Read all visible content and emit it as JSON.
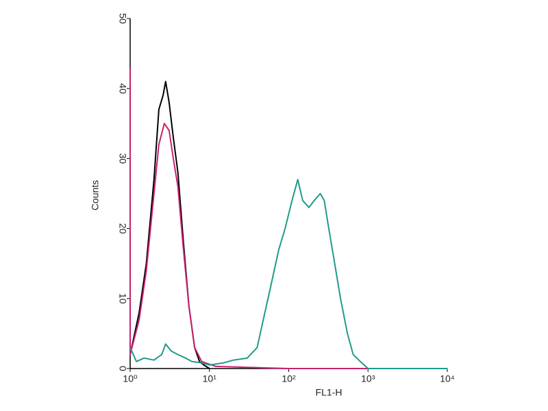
{
  "chart_data": {
    "type": "line",
    "xscale": "log",
    "xlabel": "FL1-H",
    "ylabel": "Counts",
    "xlim": [
      1,
      10000
    ],
    "xticks": [
      {
        "value": 1,
        "label": "10⁰"
      },
      {
        "value": 10,
        "label": "10¹"
      },
      {
        "value": 100,
        "label": "10²"
      },
      {
        "value": 1000,
        "label": "10³"
      },
      {
        "value": 10000,
        "label": "10⁴"
      }
    ],
    "ylim": [
      0,
      50
    ],
    "yticks": [
      0,
      10,
      20,
      30,
      40,
      50
    ],
    "series": [
      {
        "color": "#000000",
        "x": [
          1,
          1.3,
          1.6,
          2,
          2.3,
          2.6,
          2.8,
          3.1,
          3.5,
          4,
          4.7,
          5.5,
          6.5,
          7.5,
          8.5,
          10
        ],
        "values": [
          2,
          8,
          15,
          27,
          37,
          39,
          41,
          38,
          33,
          28,
          18,
          9,
          3,
          1,
          0.5,
          0
        ]
      },
      {
        "color": "#c8206e",
        "x": [
          1,
          1,
          1.3,
          1.6,
          2,
          2.3,
          2.7,
          3.1,
          3.5,
          4,
          4.7,
          5.5,
          6.5,
          8,
          12,
          100,
          10000
        ],
        "values": [
          43,
          2,
          7,
          14,
          25,
          32,
          35,
          34,
          30,
          26,
          17,
          9,
          3,
          1,
          0.3,
          0,
          0
        ]
      },
      {
        "color": "#1f9a8a",
        "x": [
          1,
          1.2,
          1.5,
          2,
          2.5,
          2.8,
          3.3,
          4,
          5,
          6,
          8,
          10,
          15,
          20,
          30,
          40,
          50,
          60,
          75,
          90,
          110,
          130,
          150,
          180,
          210,
          250,
          280,
          320,
          380,
          450,
          550,
          650,
          800,
          1000,
          10000
        ],
        "values": [
          3,
          1,
          1.5,
          1.2,
          2,
          3.5,
          2.5,
          2,
          1.5,
          1,
          0.8,
          0.5,
          0.8,
          1.2,
          1.5,
          3,
          8,
          12,
          17,
          20,
          24,
          27,
          24,
          23,
          24,
          25,
          24,
          20,
          15,
          10,
          5,
          2,
          1,
          0,
          0
        ]
      }
    ]
  }
}
